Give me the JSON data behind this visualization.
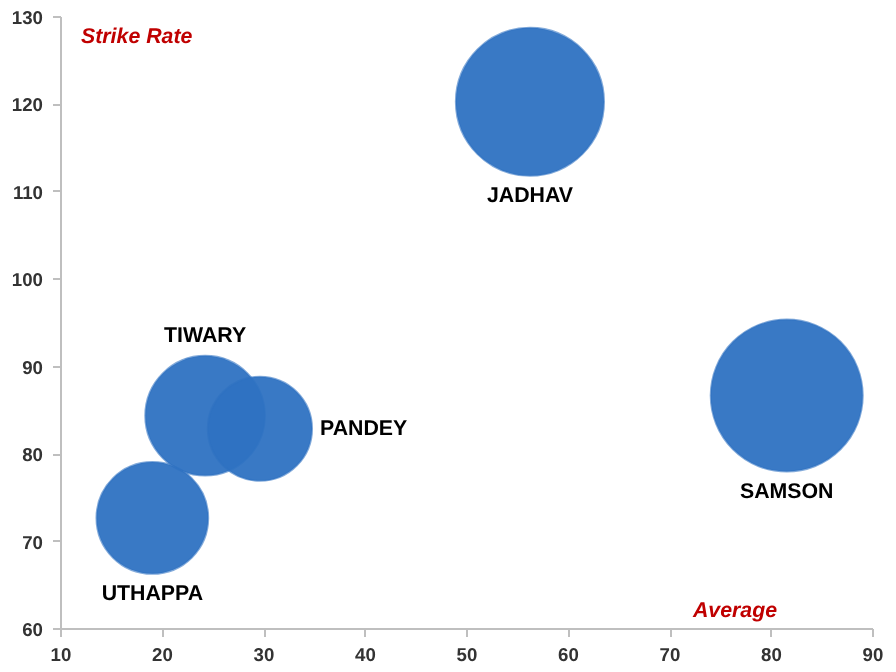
{
  "chart_data": {
    "type": "bubble",
    "xlabel": "Average",
    "ylabel": "Strike Rate",
    "xlim": [
      10,
      90
    ],
    "ylim": [
      60,
      130
    ],
    "xticks": [
      10,
      20,
      30,
      40,
      50,
      60,
      70,
      80,
      90
    ],
    "yticks": [
      60,
      70,
      80,
      90,
      100,
      110,
      120,
      130
    ],
    "grid": false,
    "series": [
      {
        "name": "UTHAPPA",
        "color": "#2e72c2",
        "x": [
          19
        ],
        "values": [
          72.7
        ],
        "sizes": [
          0.54
        ]
      },
      {
        "name": "TIWARY",
        "color": "#2e72c2",
        "x": [
          24.2
        ],
        "values": [
          84.4
        ],
        "sizes": [
          0.62
        ]
      },
      {
        "name": "PANDEY",
        "color": "#2e72c2",
        "x": [
          29.6
        ],
        "values": [
          82.9
        ],
        "sizes": [
          0.47
        ]
      },
      {
        "name": "JADHAV",
        "color": "#2e72c2",
        "x": [
          56.2
        ],
        "values": [
          120.3
        ],
        "sizes": [
          0.95
        ]
      },
      {
        "name": "SAMSON",
        "color": "#2e72c2",
        "x": [
          81.5
        ],
        "values": [
          86.7
        ],
        "sizes": [
          1
        ]
      }
    ]
  }
}
